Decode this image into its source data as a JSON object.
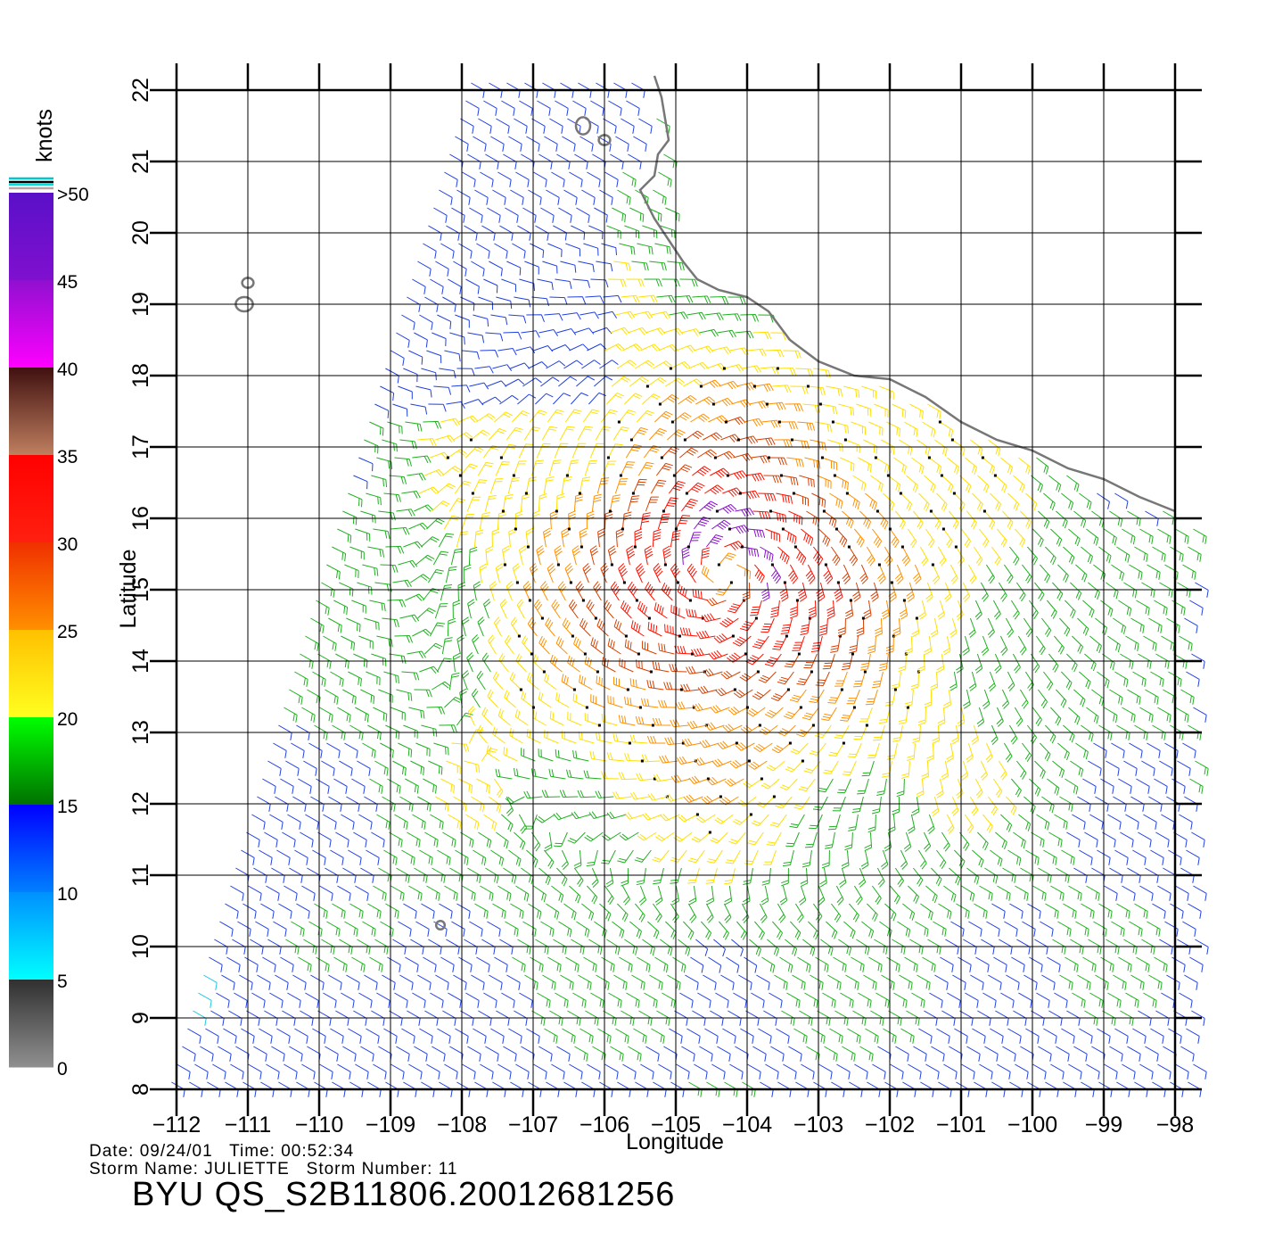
{
  "map": {
    "xlabel": "Longitude",
    "ylabel": "Latitude",
    "lon_range": [
      -112,
      -98
    ],
    "lat_range": [
      8,
      22
    ],
    "lon_ticks": [
      -112,
      -111,
      -110,
      -109,
      -108,
      -107,
      -106,
      -105,
      -104,
      -103,
      -102,
      -101,
      -100,
      -99,
      -98
    ],
    "lat_ticks": [
      8,
      9,
      10,
      11,
      12,
      13,
      14,
      15,
      16,
      17,
      18,
      19,
      20,
      21,
      22
    ],
    "lon_tick_labels": [
      "−112",
      "−111",
      "−110",
      "−109",
      "−108",
      "−107",
      "−106",
      "−105",
      "−104",
      "−103",
      "−102",
      "−101",
      "−100",
      "−99",
      "−98"
    ],
    "lat_tick_labels": [
      "8",
      "9",
      "10",
      "11",
      "12",
      "13",
      "14",
      "15",
      "16",
      "17",
      "18",
      "19",
      "20",
      "21",
      "22"
    ],
    "grid": true,
    "storm_center": [
      -104.3,
      15.2
    ],
    "land_color": "#777777"
  },
  "legend": {
    "title": "knots",
    "position": "left",
    "bands": [
      {
        "label": ">50",
        "value": 50,
        "top": "#5a10c8",
        "bottom": "#8010d0"
      },
      {
        "label": "45",
        "value": 45,
        "top": "#9010d0",
        "bottom": "#ff00ff"
      },
      {
        "label": "40",
        "value": 40,
        "top": "#401010",
        "bottom": "#c08060"
      },
      {
        "label": "35",
        "value": 35,
        "top": "#ff0000",
        "bottom": "#ff2010"
      },
      {
        "label": "30",
        "value": 30,
        "top": "#f03000",
        "bottom": "#ff9000"
      },
      {
        "label": "25",
        "value": 25,
        "top": "#ffc000",
        "bottom": "#ffff20"
      },
      {
        "label": "20",
        "value": 20,
        "top": "#00ff00",
        "bottom": "#007000"
      },
      {
        "label": "15",
        "value": 15,
        "top": "#0000ff",
        "bottom": "#0080ff"
      },
      {
        "label": "10",
        "value": 10,
        "top": "#0090ff",
        "bottom": "#00ffff"
      },
      {
        "label": "5",
        "value": 5,
        "top": "#303030",
        "bottom": "#909090"
      },
      {
        "label": "0",
        "value": 0,
        "top": "",
        "bottom": ""
      }
    ]
  },
  "info": {
    "line1": "Date: 09/24/01   Time: 00:52:34",
    "line2": "Storm Name: JULIETTE   Storm Number: 11",
    "product": "BYU  QS_S2B11806.20012681256"
  }
}
